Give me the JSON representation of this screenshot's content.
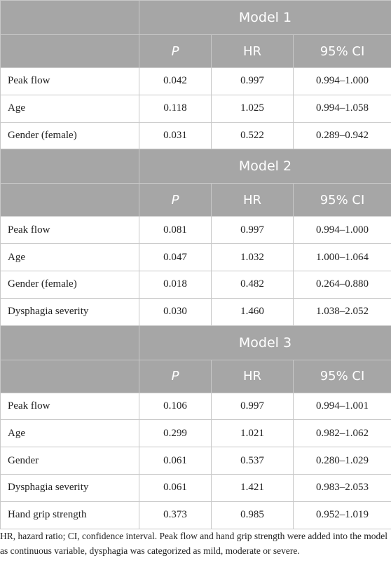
{
  "models": [
    {
      "title": "Model 1",
      "headers": [
        "P",
        "HR",
        "95% CI"
      ],
      "rows": [
        {
          "label": "Peak flow",
          "p": "0.042",
          "hr": "0.997",
          "ci": "0.994–1.000"
        },
        {
          "label": "Age",
          "p": "0.118",
          "hr": "1.025",
          "ci": "0.994–1.058"
        },
        {
          "label": "Gender (female)",
          "p": "0.031",
          "hr": "0.522",
          "ci": "0.289–0.942"
        }
      ]
    },
    {
      "title": "Model 2",
      "headers": [
        "P",
        "HR",
        "95% CI"
      ],
      "rows": [
        {
          "label": "Peak flow",
          "p": "0.081",
          "hr": "0.997",
          "ci": "0.994–1.000"
        },
        {
          "label": "Age",
          "p": "0.047",
          "hr": "1.032",
          "ci": "1.000–1.064"
        },
        {
          "label": "Gender (female)",
          "p": "0.018",
          "hr": "0.482",
          "ci": "0.264–0.880"
        },
        {
          "label": "Dysphagia severity",
          "p": "0.030",
          "hr": "1.460",
          "ci": "1.038–2.052"
        }
      ]
    },
    {
      "title": "Model 3",
      "headers": [
        "P",
        "HR",
        "95% CI"
      ],
      "rows": [
        {
          "label": "Peak flow",
          "p": "0.106",
          "hr": "0.997",
          "ci": "0.994–1.001"
        },
        {
          "label": "Age",
          "p": "0.299",
          "hr": "1.021",
          "ci": "0.982–1.062"
        },
        {
          "label": "Gender",
          "p": "0.061",
          "hr": "0.537",
          "ci": "0.280–1.029"
        },
        {
          "label": "Dysphagia severity",
          "p": "0.061",
          "hr": "1.421",
          "ci": "0.983–2.053"
        },
        {
          "label": "Hand grip strength",
          "p": "0.373",
          "hr": "0.985",
          "ci": "0.952–1.019"
        }
      ]
    }
  ],
  "footnote": "HR, hazard ratio; CI, confidence interval. Peak flow and hand grip strength were added into the model as continuous variable, dysphagia was categorized as mild, moderate or severe.",
  "colors": {
    "header_bg": "#a6a6a6",
    "header_text": "#ffffff",
    "border": "#c8c8c8",
    "body_text": "#222222"
  }
}
